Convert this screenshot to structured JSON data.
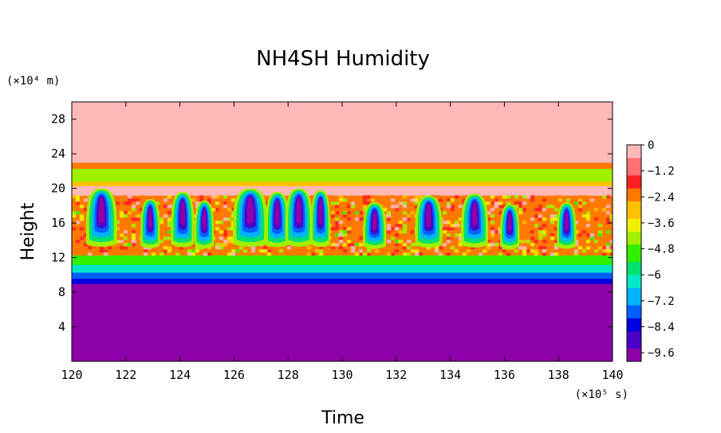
{
  "chart_data": {
    "type": "heatmap",
    "title": "NH4SH Humidity",
    "xlabel": "Time",
    "ylabel": "Height",
    "x_unit": "(×10⁵ s)",
    "y_unit": "(×10⁴ m)",
    "xlim": [
      120,
      140
    ],
    "ylim": [
      0,
      30
    ],
    "x_ticks": [
      120,
      122,
      124,
      126,
      128,
      130,
      132,
      134,
      136,
      138,
      140
    ],
    "y_ticks": [
      4,
      8,
      12,
      16,
      20,
      24,
      28
    ],
    "colorbar": {
      "range": [
        -10,
        0
      ],
      "ticks": [
        0,
        -1.2,
        -2.4,
        -3.6,
        -4.8,
        -6,
        -7.2,
        -8.4,
        -9.6
      ],
      "tick_labels": [
        "0",
        "−1.2",
        "−2.4",
        "−3.6",
        "−4.8",
        "−6",
        "−7.2",
        "−8.4",
        "−9.6"
      ],
      "colors": [
        "#8e00a8",
        "#4b00c8",
        "#0000e0",
        "#0060ff",
        "#00b4ff",
        "#00e8c8",
        "#00e070",
        "#30f000",
        "#a0f000",
        "#f0f000",
        "#ffc000",
        "#ff7800",
        "#ff2020",
        "#ff7070",
        "#ffb8b8"
      ]
    },
    "layers": [
      {
        "from": 0,
        "to": 9.0,
        "value": -10
      },
      {
        "from": 9.0,
        "to": 9.6,
        "value": -8.6
      },
      {
        "from": 9.6,
        "to": 10.3,
        "value": -7.4
      },
      {
        "from": 10.3,
        "to": 11.2,
        "value": -6.2
      },
      {
        "from": 11.2,
        "to": 12.3,
        "value": -4.8
      },
      {
        "from": 12.3,
        "to": 19.2,
        "value": -2.6,
        "convective": true
      },
      {
        "from": 19.2,
        "to": 20.3,
        "value": -0.6
      },
      {
        "from": 20.3,
        "to": 20.8,
        "value": -3.0
      },
      {
        "from": 20.8,
        "to": 22.3,
        "value": -4.6
      },
      {
        "from": 22.3,
        "to": 23.0,
        "value": -2.6
      },
      {
        "from": 23.0,
        "to": 30,
        "value": 0
      }
    ],
    "plumes": [
      {
        "time": 121.1,
        "top": 20.0,
        "width": 0.8
      },
      {
        "time": 122.9,
        "top": 18.8,
        "width": 0.5
      },
      {
        "time": 124.1,
        "top": 19.6,
        "width": 0.6
      },
      {
        "time": 124.9,
        "top": 18.6,
        "width": 0.5
      },
      {
        "time": 126.6,
        "top": 20.0,
        "width": 0.9
      },
      {
        "time": 127.6,
        "top": 19.6,
        "width": 0.6
      },
      {
        "time": 128.4,
        "top": 20.0,
        "width": 0.7
      },
      {
        "time": 129.2,
        "top": 19.8,
        "width": 0.5
      },
      {
        "time": 131.2,
        "top": 18.4,
        "width": 0.6
      },
      {
        "time": 133.2,
        "top": 19.2,
        "width": 0.7
      },
      {
        "time": 134.9,
        "top": 19.4,
        "width": 0.7
      },
      {
        "time": 136.2,
        "top": 18.2,
        "width": 0.5
      },
      {
        "time": 138.3,
        "top": 18.4,
        "width": 0.5
      }
    ]
  }
}
